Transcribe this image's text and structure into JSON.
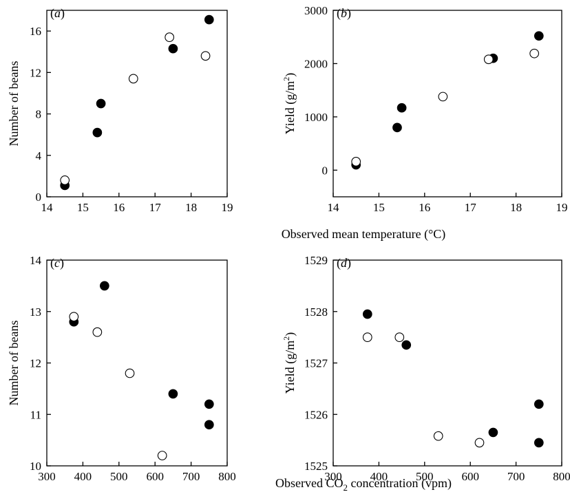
{
  "figure": {
    "top_xlabel": "Observed mean temperature (°C)",
    "bottom_xlabel_pre": "Observed CO",
    "bottom_xlabel_sub": "2",
    "bottom_xlabel_post": " concentration (vpm)"
  },
  "chart_data": [
    {
      "id": "a",
      "type": "scatter",
      "panel_label": "a",
      "xlabel": "",
      "ylabel": "Number of beans",
      "xlim": [
        14,
        19
      ],
      "ylim": [
        0,
        18
      ],
      "xticks": [
        14,
        15,
        16,
        17,
        18,
        19
      ],
      "yticks": [
        0,
        4,
        8,
        12,
        16
      ],
      "grid": false,
      "series": [
        {
          "marker": "filled",
          "color": "#000000",
          "x": [
            14.5,
            15.4,
            15.5,
            17.5,
            18.5
          ],
          "y": [
            1.1,
            6.2,
            9.0,
            14.3,
            17.1
          ]
        },
        {
          "marker": "open",
          "color": "#000000",
          "x": [
            14.5,
            16.4,
            17.4,
            18.4
          ],
          "y": [
            1.6,
            11.4,
            15.4,
            13.6
          ]
        }
      ]
    },
    {
      "id": "b",
      "type": "scatter",
      "panel_label": "b",
      "xlabel": "",
      "ylabel_pre": "Yield (g/m",
      "ylabel_sup": "2",
      "ylabel_post": ")",
      "xlim": [
        14,
        19
      ],
      "ylim": [
        -500,
        3000
      ],
      "xticks": [
        14,
        15,
        16,
        17,
        18,
        19
      ],
      "yticks": [
        0,
        1000,
        2000,
        3000
      ],
      "grid": false,
      "series": [
        {
          "marker": "filled",
          "color": "#000000",
          "x": [
            14.5,
            15.4,
            15.5,
            17.5,
            18.5
          ],
          "y": [
            100,
            800,
            1170,
            2100,
            2520
          ]
        },
        {
          "marker": "open",
          "color": "#000000",
          "x": [
            14.5,
            16.4,
            17.4,
            18.4
          ],
          "y": [
            160,
            1380,
            2080,
            2190
          ]
        }
      ]
    },
    {
      "id": "c",
      "type": "scatter",
      "panel_label": "c",
      "xlabel": "",
      "ylabel": "Number of beans",
      "xlim": [
        300,
        800
      ],
      "ylim": [
        10,
        14
      ],
      "xticks": [
        300,
        400,
        500,
        600,
        700,
        800
      ],
      "yticks": [
        10,
        11,
        12,
        13,
        14
      ],
      "grid": false,
      "series": [
        {
          "marker": "filled",
          "color": "#000000",
          "x": [
            375,
            460,
            650,
            750,
            750
          ],
          "y": [
            12.8,
            13.5,
            11.4,
            11.2,
            10.8
          ]
        },
        {
          "marker": "open",
          "color": "#000000",
          "x": [
            375,
            440,
            530,
            620
          ],
          "y": [
            12.9,
            12.6,
            11.8,
            10.2
          ]
        }
      ]
    },
    {
      "id": "d",
      "type": "scatter",
      "panel_label": "d",
      "xlabel": "",
      "ylabel_pre": "Yield (g/m",
      "ylabel_sup": "2",
      "ylabel_post": ")",
      "xlim": [
        300,
        800
      ],
      "ylim": [
        1525,
        1529
      ],
      "xticks": [
        300,
        400,
        500,
        600,
        700,
        800
      ],
      "yticks": [
        1525,
        1526,
        1527,
        1528,
        1529
      ],
      "grid": false,
      "series": [
        {
          "marker": "filled",
          "color": "#000000",
          "x": [
            375,
            460,
            650,
            750,
            750
          ],
          "y": [
            1527.95,
            1527.35,
            1525.65,
            1526.2,
            1525.45
          ]
        },
        {
          "marker": "open",
          "color": "#000000",
          "x": [
            375,
            445,
            530,
            620
          ],
          "y": [
            1527.5,
            1527.5,
            1525.58,
            1525.45
          ]
        }
      ]
    }
  ]
}
